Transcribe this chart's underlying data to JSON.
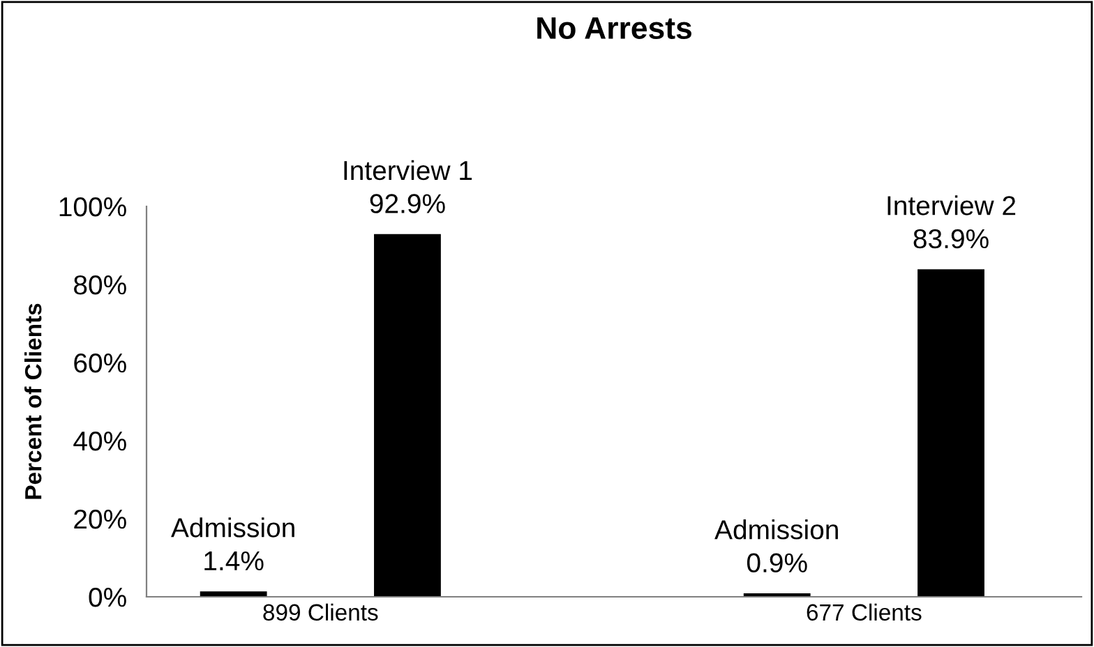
{
  "chart_data": {
    "type": "bar",
    "title": "No Arrests",
    "ylabel": "Percent of Clients",
    "categories": [
      "899 Clients",
      "677 Clients"
    ],
    "series": [
      {
        "color": "#000000",
        "values": [
          1.4,
          0.9
        ],
        "value_labels": [
          "Admission\n1.4%",
          "Admission\n0.9%"
        ]
      },
      {
        "color": "#000000",
        "values": [
          92.9,
          83.9
        ],
        "value_labels": [
          "Interview 1\n92.9%",
          "Interview 2\n83.9%"
        ]
      }
    ],
    "ylim": [
      0,
      100
    ],
    "yticks": [
      {
        "value": 0,
        "label": "0%"
      },
      {
        "value": 20,
        "label": "20%"
      },
      {
        "value": 40,
        "label": "40%"
      },
      {
        "value": 60,
        "label": "60%"
      },
      {
        "value": 80,
        "label": "80%"
      },
      {
        "value": 100,
        "label": "100%"
      }
    ],
    "grid": false,
    "legend": false
  }
}
